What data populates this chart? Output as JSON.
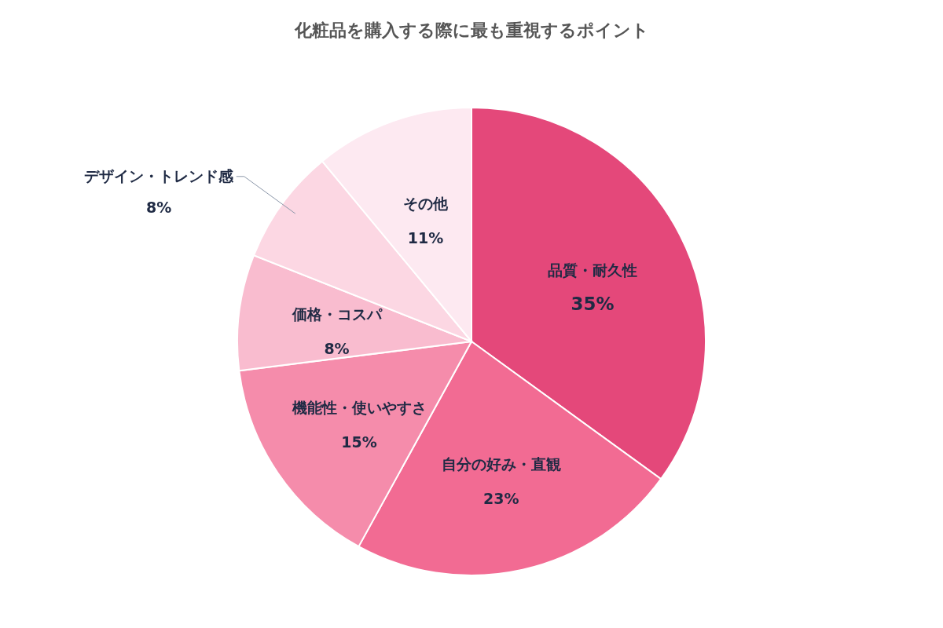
{
  "chart_data": {
    "type": "pie",
    "title": "化粧品を購入する際に最も重視するポイント",
    "categories": [
      "品質・耐久性",
      "自分の好み・直観",
      "機能性・使いやすさ",
      "価格・コスパ",
      "デザイン・トレンド感",
      "その他"
    ],
    "values": [
      35,
      23,
      15,
      8,
      8,
      11
    ],
    "value_labels": [
      "35%",
      "23%",
      "15%",
      "8%",
      "8%",
      "11%"
    ],
    "colors": [
      "#e4487a",
      "#f26b93",
      "#f58cab",
      "#f9bccf",
      "#fcd7e3",
      "#fde9f1"
    ]
  }
}
